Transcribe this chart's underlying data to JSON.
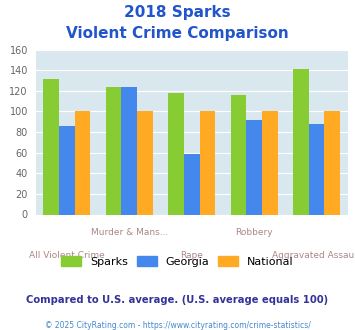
{
  "title_line1": "2018 Sparks",
  "title_line2": "Violent Crime Comparison",
  "categories": [
    "All Violent Crime",
    "Murder & Mans...",
    "Rape",
    "Robbery",
    "Aggravated Assault"
  ],
  "top_labels": [
    "",
    "Murder & Mans...",
    "",
    "Robbery",
    ""
  ],
  "bottom_labels": [
    "All Violent Crime",
    "",
    "Rape",
    "",
    "Aggravated Assault"
  ],
  "sparks": [
    131,
    124,
    118,
    116,
    141
  ],
  "georgia": [
    86,
    124,
    59,
    92,
    88
  ],
  "national": [
    100,
    100,
    100,
    100,
    100
  ],
  "sparks_color": "#88cc33",
  "georgia_color": "#4488ee",
  "national_color": "#ffaa22",
  "bg_color": "#d8e8ee",
  "title_color": "#2255cc",
  "xlabel_top_color": "#aa8888",
  "xlabel_bot_color": "#aa8888",
  "ylabel_max": 160,
  "ylabel_step": 20,
  "note_text": "Compared to U.S. average. (U.S. average equals 100)",
  "footer_text": "© 2025 CityRating.com - https://www.cityrating.com/crime-statistics/",
  "note_color": "#333399",
  "footer_color": "#4488cc",
  "bar_width": 0.25
}
